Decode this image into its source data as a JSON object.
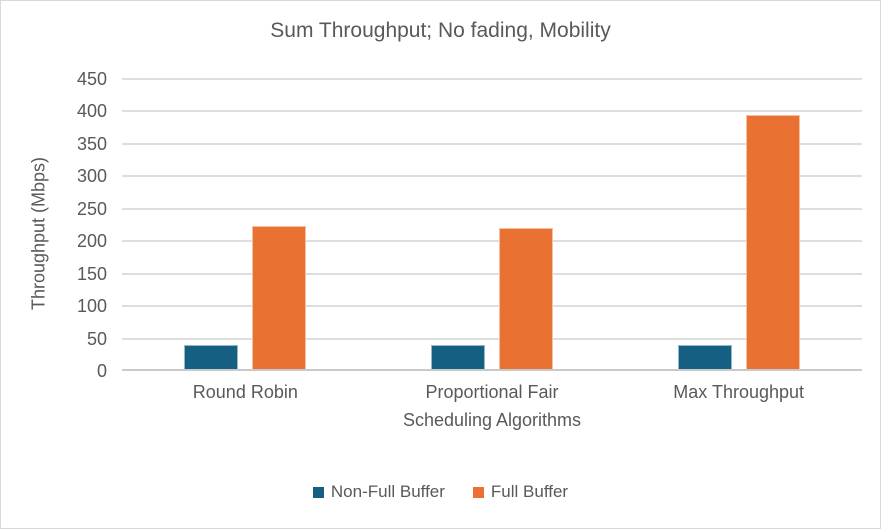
{
  "chart_data": {
    "type": "bar",
    "title": "Sum Throughput; No fading, Mobility",
    "xlabel": "Scheduling Algorithms",
    "ylabel": "Throughput (Mbps)",
    "categories": [
      "Round Robin",
      "Proportional Fair",
      "Max Throughput"
    ],
    "series": [
      {
        "name": "Non-Full Buffer",
        "color": "#156082",
        "values": [
          37,
          37,
          37
        ]
      },
      {
        "name": "Full Buffer",
        "color": "#E97132",
        "values": [
          220,
          218,
          392
        ]
      }
    ],
    "ylim": [
      0,
      450
    ],
    "yticks": [
      0,
      50,
      100,
      150,
      200,
      250,
      300,
      350,
      400,
      450
    ],
    "grid": "horizontal",
    "legend_position": "bottom"
  },
  "style": {
    "text_color": "#595959",
    "gridline_color": "#DEDEDE",
    "axis_line_color": "#C9C9C9",
    "background": "#FFFFFF",
    "border_color": "#D9D9D9"
  }
}
